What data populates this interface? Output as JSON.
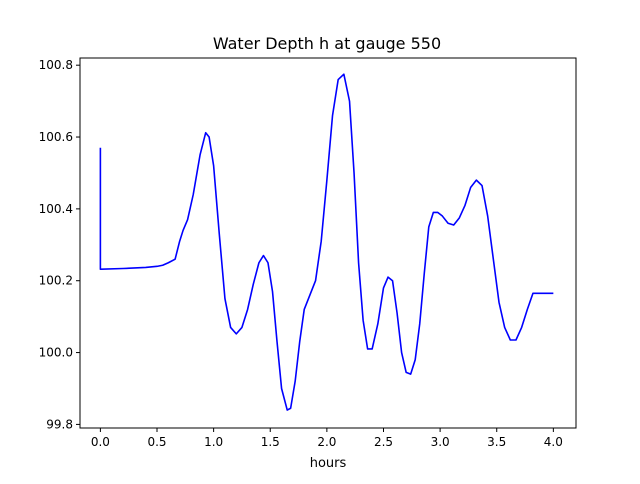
{
  "chart_data": {
    "type": "line",
    "title": "Water Depth h at gauge 550",
    "xlabel": "hours",
    "ylabel": "",
    "xlim": [
      -0.18,
      4.2
    ],
    "ylim": [
      99.79,
      100.82
    ],
    "grid": false,
    "xticks": [
      "0.0",
      "0.5",
      "1.0",
      "1.5",
      "2.0",
      "2.5",
      "3.0",
      "3.5",
      "4.0"
    ],
    "xtick_values": [
      0.0,
      0.5,
      1.0,
      1.5,
      2.0,
      2.5,
      3.0,
      3.5,
      4.0
    ],
    "yticks": [
      "99.8",
      "100.0",
      "100.2",
      "100.4",
      "100.6",
      "100.8"
    ],
    "ytick_values": [
      99.8,
      100.0,
      100.2,
      100.4,
      100.6,
      100.8
    ],
    "colors": {
      "series": "#0000ff",
      "axes": "#000000"
    },
    "series": [
      {
        "name": "",
        "x": [
          0.0,
          0.0,
          0.01,
          0.2,
          0.4,
          0.5,
          0.55,
          0.6,
          0.66,
          0.7,
          0.73,
          0.77,
          0.82,
          0.88,
          0.93,
          0.96,
          1.0,
          1.05,
          1.1,
          1.15,
          1.2,
          1.25,
          1.3,
          1.35,
          1.4,
          1.44,
          1.48,
          1.52,
          1.56,
          1.6,
          1.65,
          1.68,
          1.72,
          1.76,
          1.8,
          1.85,
          1.9,
          1.95,
          2.0,
          2.05,
          2.1,
          2.15,
          2.2,
          2.24,
          2.28,
          2.32,
          2.36,
          2.4,
          2.45,
          2.5,
          2.54,
          2.58,
          2.62,
          2.66,
          2.7,
          2.74,
          2.78,
          2.82,
          2.86,
          2.9,
          2.94,
          2.98,
          3.02,
          3.07,
          3.12,
          3.17,
          3.22,
          3.27,
          3.32,
          3.37,
          3.42,
          3.47,
          3.52,
          3.57,
          3.62,
          3.67,
          3.72,
          3.77,
          3.82,
          3.86,
          3.9,
          3.95,
          4.0
        ],
        "y": [
          100.57,
          100.232,
          100.232,
          100.234,
          100.237,
          100.24,
          100.243,
          100.25,
          100.26,
          100.31,
          100.34,
          100.37,
          100.44,
          100.55,
          100.612,
          100.6,
          100.52,
          100.33,
          100.15,
          100.07,
          100.052,
          100.07,
          100.12,
          100.19,
          100.25,
          100.27,
          100.25,
          100.17,
          100.03,
          99.9,
          99.84,
          99.845,
          99.92,
          100.03,
          100.12,
          100.16,
          100.2,
          100.31,
          100.48,
          100.66,
          100.76,
          100.775,
          100.7,
          100.5,
          100.25,
          100.09,
          100.01,
          100.01,
          100.08,
          100.18,
          100.21,
          100.2,
          100.11,
          100.0,
          99.945,
          99.94,
          99.98,
          100.08,
          100.22,
          100.35,
          100.39,
          100.39,
          100.38,
          100.36,
          100.355,
          100.375,
          100.41,
          100.46,
          100.48,
          100.465,
          100.38,
          100.26,
          100.14,
          100.07,
          100.035,
          100.035,
          100.07,
          100.12,
          100.165,
          100.165,
          100.165,
          100.165,
          100.165
        ]
      }
    ]
  }
}
